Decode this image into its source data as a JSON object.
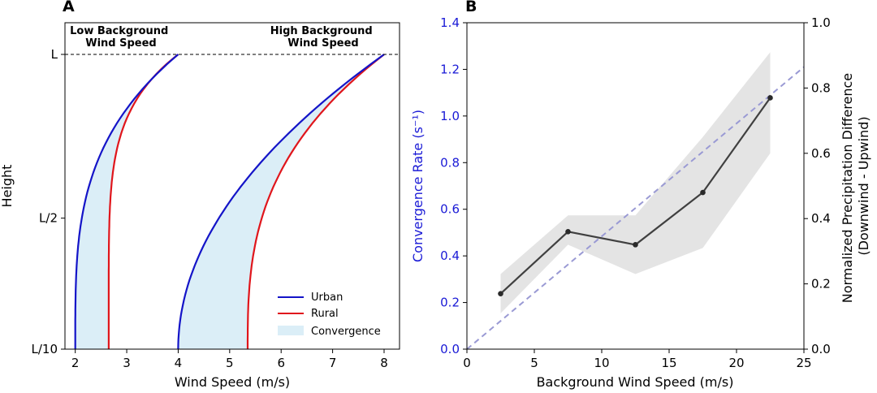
{
  "panels": {
    "a_letter": "A",
    "b_letter": "B"
  },
  "chart_data": [
    {
      "type": "line",
      "panel": "A",
      "xlabel": "Wind Speed (m/s)",
      "ylabel": "Height",
      "xlim": [
        1.8,
        8.3
      ],
      "x_ticks": [
        {
          "value": 2,
          "label": "2"
        },
        {
          "value": 3,
          "label": "3"
        },
        {
          "value": 4,
          "label": "4"
        },
        {
          "value": 5,
          "label": "5"
        },
        {
          "value": 6,
          "label": "6"
        },
        {
          "value": 7,
          "label": "7"
        },
        {
          "value": 8,
          "label": "8"
        }
      ],
      "y_ticks": [
        {
          "value": 0.1,
          "label": "L/10"
        },
        {
          "value": 0.5,
          "label": "L/2"
        },
        {
          "value": 1.0,
          "label": "L"
        }
      ],
      "reference_line": {
        "y": 1.0,
        "style": "dashed"
      },
      "annotations": [
        {
          "lines": [
            "Low Background",
            "Wind Speed"
          ],
          "position": "top-left"
        },
        {
          "lines": [
            "High Background",
            "Wind Speed"
          ],
          "position": "top-right"
        }
      ],
      "profiles": [
        {
          "name": "Low Background Wind Speed",
          "top_speed": 4.0,
          "urban_bottom": 2.0,
          "rural_bottom": 2.65,
          "urban_exponent": 3.4,
          "rural_exponent": 5.5
        },
        {
          "name": "High Background Wind Speed",
          "top_speed": 8.0,
          "urban_bottom": 4.0,
          "rural_bottom": 5.35,
          "urban_exponent": 2.0,
          "rural_exponent": 2.8
        }
      ],
      "legend": {
        "position": "bottom-right",
        "items": [
          {
            "label": "Urban",
            "color": "#1414c8",
            "kind": "line"
          },
          {
            "label": "Rural",
            "color": "#e0161c",
            "kind": "line"
          },
          {
            "label": "Convergence",
            "color": "#dbeef7",
            "kind": "patch"
          }
        ]
      }
    },
    {
      "type": "line",
      "panel": "B",
      "xlabel": "Background Wind Speed (m/s)",
      "ylabel_left": "Convergence Rate (s⁻¹)",
      "ylabel_right": [
        "Normalized Precipitation Difference",
        "(Downwind - Upwind)"
      ],
      "xlim": [
        0,
        25
      ],
      "ylim_left": [
        0,
        1.4
      ],
      "ylim_right": [
        0,
        1.0
      ],
      "x_ticks": [
        {
          "value": 0,
          "label": "0"
        },
        {
          "value": 5,
          "label": "5"
        },
        {
          "value": 10,
          "label": "10"
        },
        {
          "value": 15,
          "label": "15"
        },
        {
          "value": 20,
          "label": "20"
        },
        {
          "value": 25,
          "label": "25"
        }
      ],
      "y_ticks_left": [
        {
          "value": 0.0,
          "label": "0.0"
        },
        {
          "value": 0.2,
          "label": "0.2"
        },
        {
          "value": 0.4,
          "label": "0.4"
        },
        {
          "value": 0.6,
          "label": "0.6"
        },
        {
          "value": 0.8,
          "label": "0.8"
        },
        {
          "value": 1.0,
          "label": "1.0"
        },
        {
          "value": 1.2,
          "label": "1.2"
        },
        {
          "value": 1.4,
          "label": "1.4"
        }
      ],
      "y_ticks_right": [
        {
          "value": 0.0,
          "label": "0.0"
        },
        {
          "value": 0.2,
          "label": "0.2"
        },
        {
          "value": 0.4,
          "label": "0.4"
        },
        {
          "value": 0.6,
          "label": "0.6"
        },
        {
          "value": 0.8,
          "label": "0.8"
        },
        {
          "value": 1.0,
          "label": "1.0"
        }
      ],
      "left_axis_color": "#1a1ad6",
      "series": [
        {
          "name": "Normalized Precipitation Difference",
          "axis": "right",
          "color": "#404040",
          "x": [
            2.5,
            7.5,
            12.5,
            17.5,
            22.5
          ],
          "y": [
            0.17,
            0.36,
            0.32,
            0.48,
            0.77
          ],
          "band_low": [
            0.11,
            0.32,
            0.23,
            0.31,
            0.6
          ],
          "band_high": [
            0.23,
            0.41,
            0.41,
            0.65,
            0.91
          ],
          "band_color": "#e4e4e4"
        },
        {
          "name": "Convergence Rate",
          "axis": "left",
          "style": "dashed",
          "color": "#9a9ad4",
          "x": [
            0,
            25
          ],
          "y": [
            0,
            1.21
          ]
        }
      ]
    }
  ]
}
